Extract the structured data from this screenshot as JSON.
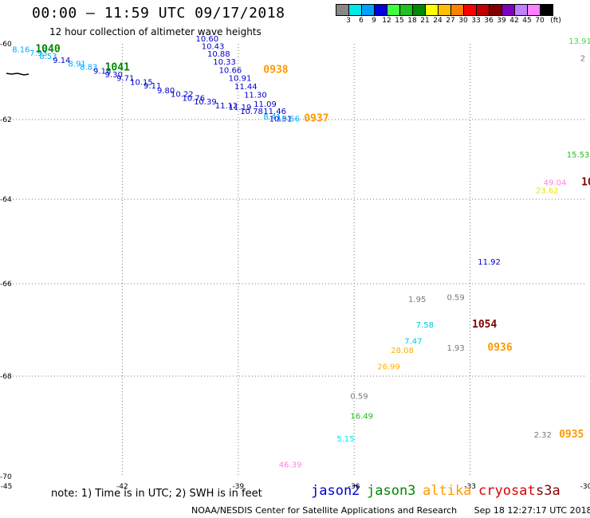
{
  "header": {
    "title": "00:00 – 11:59 UTC 09/17/2018",
    "subtitle": "12 hour collection of altimeter wave heights"
  },
  "legend": {
    "unit": "(ft)",
    "items": [
      {
        "label": "3",
        "color": "#888888"
      },
      {
        "label": "6",
        "color": "#00e8e8"
      },
      {
        "label": "9",
        "color": "#00a0ff"
      },
      {
        "label": "12",
        "color": "#0000e0"
      },
      {
        "label": "15",
        "color": "#40ff40"
      },
      {
        "label": "18",
        "color": "#20c020"
      },
      {
        "label": "21",
        "color": "#008800"
      },
      {
        "label": "24",
        "color": "#ffff00"
      },
      {
        "label": "27",
        "color": "#ffc000"
      },
      {
        "label": "30",
        "color": "#ff8000"
      },
      {
        "label": "33",
        "color": "#ff0000"
      },
      {
        "label": "36",
        "color": "#c00000"
      },
      {
        "label": "39",
        "color": "#800000"
      },
      {
        "label": "42",
        "color": "#8000c0"
      },
      {
        "label": "45",
        "color": "#c080ff"
      },
      {
        "label": "70",
        "color": "#ff80ff"
      },
      {
        "label": "",
        "color": "#000000"
      }
    ]
  },
  "map": {
    "lon_ticks": [
      "-45",
      "-42",
      "-39",
      "-36",
      "-33",
      "-30"
    ],
    "lat_ticks": [
      "-60",
      "-62",
      "-64",
      "-66",
      "-68",
      "-70"
    ],
    "heights": [
      {
        "text": "8.16",
        "color": "#00aaff",
        "lon": -44.85,
        "lat": -60.22
      },
      {
        "text": "7.93",
        "color": "#00aaff",
        "lon": -44.4,
        "lat": -60.32
      },
      {
        "text": "8.53",
        "color": "#00aaff",
        "lon": -44.15,
        "lat": -60.4
      },
      {
        "text": "9.14",
        "color": "#0000d0",
        "lon": -43.8,
        "lat": -60.5
      },
      {
        "text": "8.91",
        "color": "#00aaff",
        "lon": -43.4,
        "lat": -60.6
      },
      {
        "text": "8.83",
        "color": "#00aaff",
        "lon": -43.1,
        "lat": -60.68
      },
      {
        "text": "9.18",
        "color": "#0000d0",
        "lon": -42.75,
        "lat": -60.79
      },
      {
        "text": "9.30",
        "color": "#0000d0",
        "lon": -42.45,
        "lat": -60.88
      },
      {
        "text": "9.71",
        "color": "#0000d0",
        "lon": -42.15,
        "lat": -60.98
      },
      {
        "text": "10.15",
        "color": "#0000d0",
        "lon": -41.8,
        "lat": -61.08
      },
      {
        "text": "9.11",
        "color": "#0000d0",
        "lon": -41.45,
        "lat": -61.18
      },
      {
        "text": "9.80",
        "color": "#0000d0",
        "lon": -41.1,
        "lat": -61.3
      },
      {
        "text": "10.22",
        "color": "#0000d0",
        "lon": -40.75,
        "lat": -61.4
      },
      {
        "text": "10.76",
        "color": "#0000d0",
        "lon": -40.45,
        "lat": -61.5
      },
      {
        "text": "10.39",
        "color": "#0000d0",
        "lon": -40.15,
        "lat": -61.6
      },
      {
        "text": "11.12",
        "color": "#0000d0",
        "lon": -39.6,
        "lat": -61.7
      },
      {
        "text": "11.19",
        "color": "#0000d0",
        "lon": -39.25,
        "lat": -61.75
      },
      {
        "text": "10.78",
        "color": "#0000d0",
        "lon": -38.95,
        "lat": -61.85
      },
      {
        "text": "10.60",
        "color": "#0000d0",
        "lon": -40.1,
        "lat": -59.94
      },
      {
        "text": "10.43",
        "color": "#0000d0",
        "lon": -39.95,
        "lat": -60.14
      },
      {
        "text": "10.88",
        "color": "#0000d0",
        "lon": -39.8,
        "lat": -60.34
      },
      {
        "text": "10.33",
        "color": "#0000d0",
        "lon": -39.65,
        "lat": -60.55
      },
      {
        "text": "10.66",
        "color": "#0000d0",
        "lon": -39.5,
        "lat": -60.77
      },
      {
        "text": "10.91",
        "color": "#0000d0",
        "lon": -39.25,
        "lat": -60.98
      },
      {
        "text": "11.44",
        "color": "#0000d0",
        "lon": -39.1,
        "lat": -61.2
      },
      {
        "text": "11.30",
        "color": "#0000d0",
        "lon": -38.85,
        "lat": -61.42
      },
      {
        "text": "11.09",
        "color": "#0000d0",
        "lon": -38.6,
        "lat": -61.66
      },
      {
        "text": "11.46",
        "color": "#0000d0",
        "lon": -38.35,
        "lat": -61.85
      },
      {
        "text": "8.41",
        "color": "#00aaff",
        "lon": -38.35,
        "lat": -62.0
      },
      {
        "text": "10.51",
        "color": "#0000d0",
        "lon": -38.2,
        "lat": -62.05
      },
      {
        "text": "10.56",
        "color": "#00aaff",
        "lon": -38.0,
        "lat": -62.05
      },
      {
        "text": "13.91",
        "color": "#40dd40",
        "lon": -30.45,
        "lat": -60.0
      },
      {
        "text": "2",
        "color": "#777777",
        "lon": -30.15,
        "lat": -60.45
      },
      {
        "text": "15.53",
        "color": "#20bb20",
        "lon": -30.5,
        "lat": -62.95
      },
      {
        "text": "49.04",
        "color": "#ff80e0",
        "lon": -31.1,
        "lat": -63.65
      },
      {
        "text": "23.62",
        "color": "#e8e800",
        "lon": -31.3,
        "lat": -63.85
      },
      {
        "text": "11.92",
        "color": "#0000d0",
        "lon": -32.8,
        "lat": -65.55
      },
      {
        "text": "1.95",
        "color": "#777777",
        "lon": -34.6,
        "lat": -66.4
      },
      {
        "text": "0.59",
        "color": "#777777",
        "lon": -33.6,
        "lat": -66.35
      },
      {
        "text": "7.58",
        "color": "#00c8d8",
        "lon": -34.4,
        "lat": -66.95
      },
      {
        "text": "7.47",
        "color": "#00c8d8",
        "lon": -34.7,
        "lat": -67.3
      },
      {
        "text": "28.08",
        "color": "#ffb000",
        "lon": -35.05,
        "lat": -67.5
      },
      {
        "text": "1.93",
        "color": "#777777",
        "lon": -33.6,
        "lat": -67.45
      },
      {
        "text": "26.99",
        "color": "#ffb000",
        "lon": -35.4,
        "lat": -67.85
      },
      {
        "text": "0.59",
        "color": "#777777",
        "lon": -36.1,
        "lat": -68.45
      },
      {
        "text": "16.49",
        "color": "#20bb20",
        "lon": -36.1,
        "lat": -68.85
      },
      {
        "text": "5.15",
        "color": "#00e8e8",
        "lon": -36.45,
        "lat": -69.3
      },
      {
        "text": "46.39",
        "color": "#ff80e0",
        "lon": -37.95,
        "lat": -69.82
      },
      {
        "text": "2.32",
        "color": "#777777",
        "lon": -31.35,
        "lat": -69.22
      }
    ],
    "passes": [
      {
        "text": "1040",
        "color": "#008800",
        "lon": -44.25,
        "lat": -60.22
      },
      {
        "text": "1041",
        "color": "#008800",
        "lon": -42.45,
        "lat": -60.7
      },
      {
        "text": "0938",
        "color": "#ff9900",
        "lon": -38.35,
        "lat": -60.77
      },
      {
        "text": "0937",
        "color": "#ff9900",
        "lon": -37.3,
        "lat": -62.05
      },
      {
        "text": "10",
        "color": "#800000",
        "lon": -30.12,
        "lat": -63.65
      },
      {
        "text": "1054",
        "color": "#800000",
        "lon": -32.95,
        "lat": -66.95
      },
      {
        "text": "0936",
        "color": "#ff9900",
        "lon": -32.55,
        "lat": -67.45
      },
      {
        "text": "0935",
        "color": "#ff9900",
        "lon": -30.7,
        "lat": -69.22
      }
    ]
  },
  "note": "note: 1) Time is in UTC; 2) SWH is in feet",
  "satellites": [
    {
      "name": "jason2",
      "color": "#0000cc"
    },
    {
      "name": "jason3",
      "color": "#008800"
    },
    {
      "name": "altika",
      "color": "#ff9900"
    },
    {
      "name": "cryosat",
      "color": "#dd0000"
    },
    {
      "name": "s3a",
      "color": "#880000"
    }
  ],
  "footer": {
    "agency": "NOAA/NESDIS Center for Satellite Applications and Research",
    "timestamp": "Sep 18 12:27:17 UTC 2018"
  }
}
